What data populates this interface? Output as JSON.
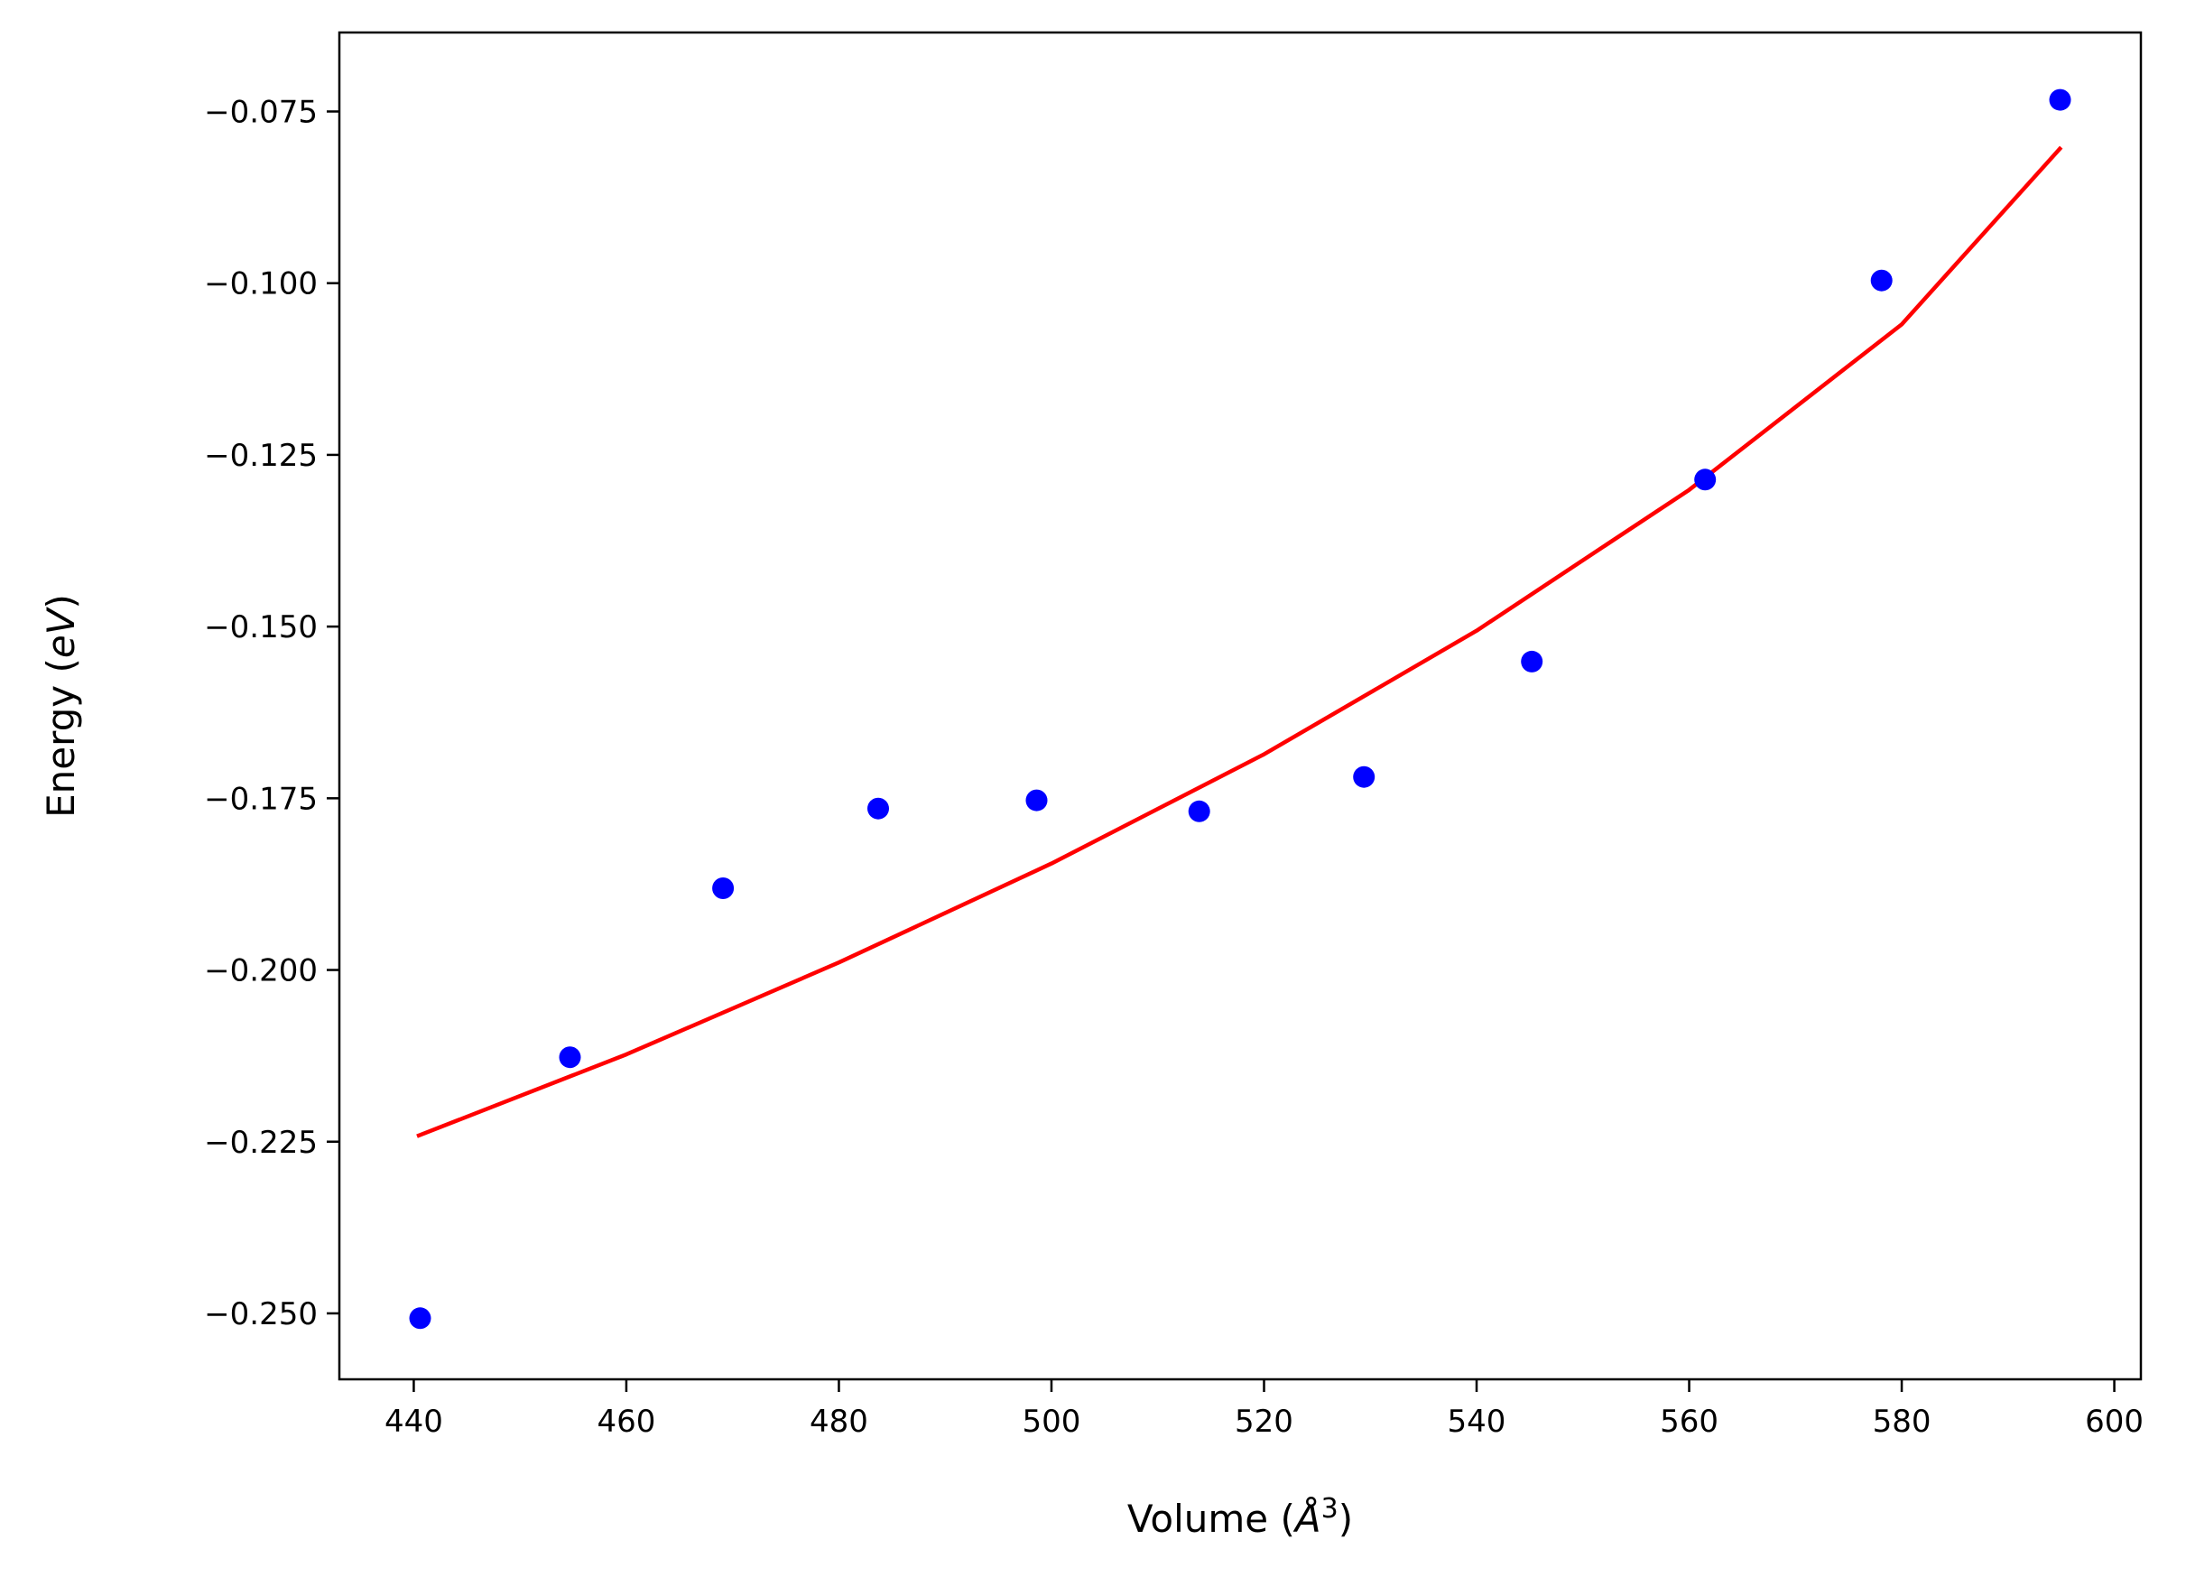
{
  "chart_data": {
    "type": "scatter",
    "title": "",
    "xlabel_parts": [
      "Volume (",
      "Å",
      "3",
      ")"
    ],
    "ylabel_parts": [
      "Energy (",
      "eV",
      ")"
    ],
    "xlim": [
      433,
      602.5
    ],
    "ylim": [
      -0.2596,
      -0.0635
    ],
    "x_ticks": [
      440,
      460,
      480,
      500,
      520,
      540,
      560,
      580,
      600
    ],
    "x_tick_labels": [
      "440",
      "460",
      "480",
      "500",
      "520",
      "540",
      "560",
      "580",
      "600"
    ],
    "y_ticks": [
      -0.25,
      -0.225,
      -0.2,
      -0.175,
      -0.15,
      -0.125,
      -0.1,
      -0.075
    ],
    "y_tick_labels": [
      "−0.250",
      "−0.225",
      "−0.200",
      "−0.175",
      "−0.150",
      "−0.125",
      "−0.100",
      "−0.075"
    ],
    "grid": false,
    "series": [
      {
        "kind": "scatter",
        "color": "#0000ff",
        "x": [
          440.6,
          454.7,
          469.1,
          483.7,
          498.6,
          513.9,
          529.4,
          545.2,
          561.5,
          578.1,
          594.9
        ],
        "y": [
          -0.2507,
          -0.2127,
          -0.1881,
          -0.1765,
          -0.1753,
          -0.1769,
          -0.1719,
          -0.1551,
          -0.1286,
          -0.0996,
          -0.0733
        ]
      },
      {
        "kind": "line",
        "color": "#ff0000",
        "x": [
          440.3,
          460,
          480,
          500,
          520,
          540,
          560,
          580,
          595.0
        ],
        "y": [
          -0.2242,
          -0.2123,
          -0.1989,
          -0.1845,
          -0.1686,
          -0.1506,
          -0.1301,
          -0.106,
          -0.0802
        ]
      }
    ]
  }
}
